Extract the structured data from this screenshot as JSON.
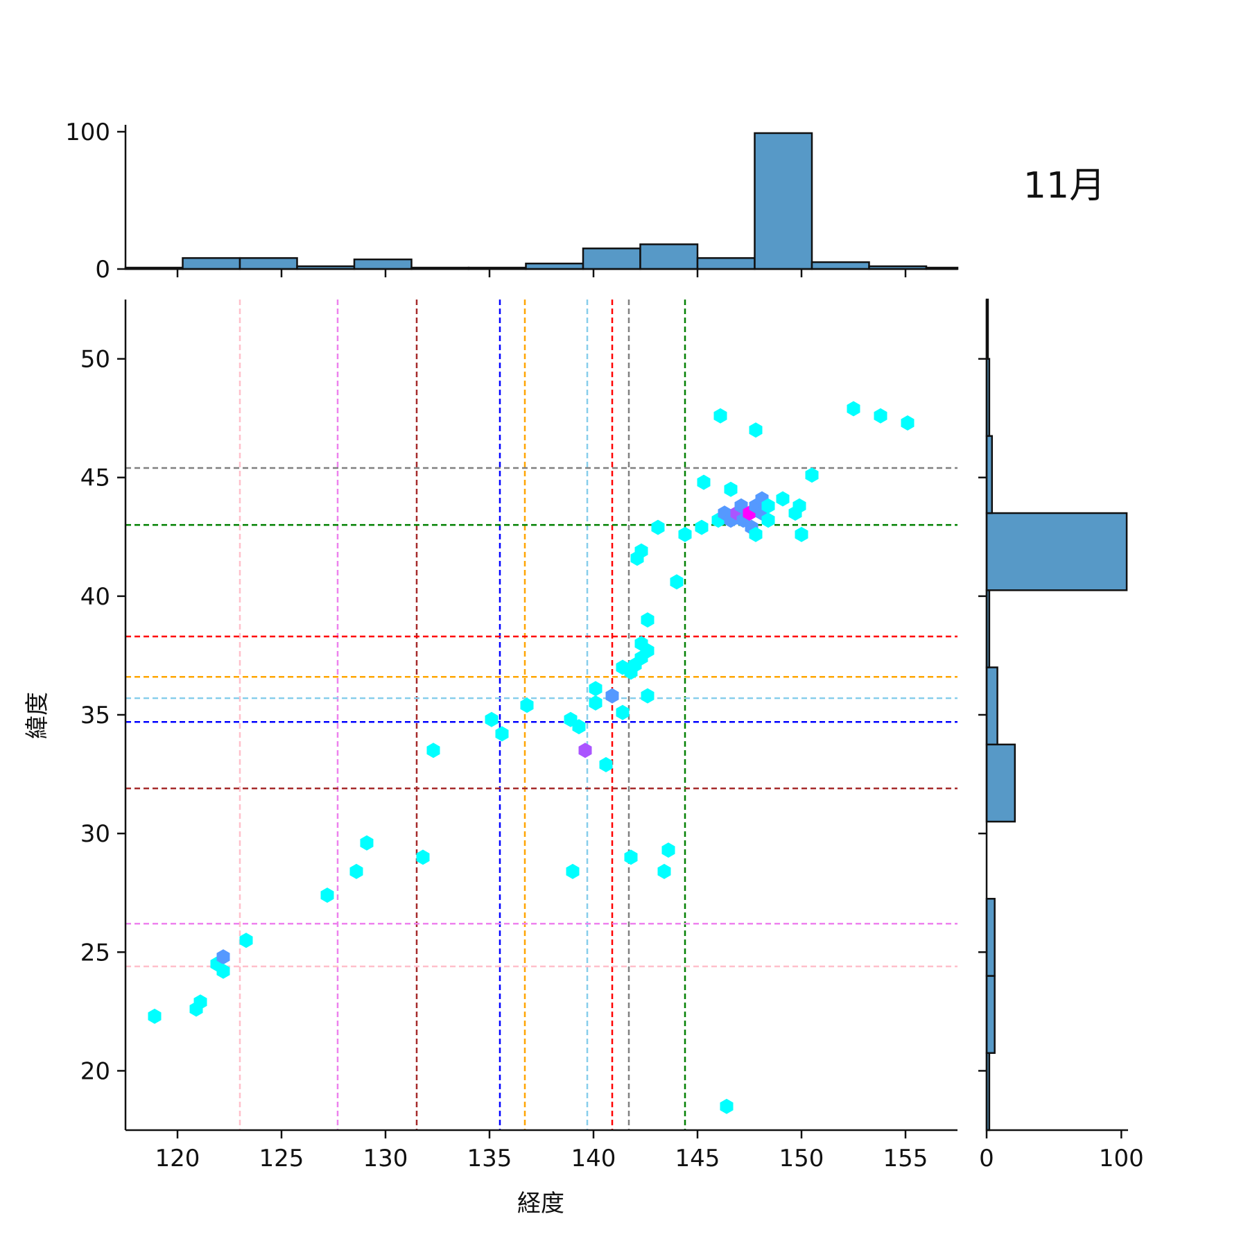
{
  "chart_data": {
    "type": "hexbin-jointplot",
    "title": "11月",
    "xlabel": "経度",
    "ylabel": "緯度",
    "xlim": [
      117.5,
      157.5
    ],
    "ylim": [
      17.5,
      52.5
    ],
    "xticks": [
      120,
      125,
      130,
      135,
      140,
      145,
      150,
      155
    ],
    "yticks": [
      20,
      25,
      30,
      35,
      40,
      45,
      50
    ],
    "top_hist": {
      "ylim": [
        0,
        100
      ],
      "yticks": [
        0,
        100
      ],
      "bin_edges": [
        117.5,
        120.25,
        123.0,
        125.75,
        128.5,
        131.25,
        134.0,
        136.75,
        139.5,
        142.25,
        145.0,
        147.75,
        150.5,
        153.25,
        156.0,
        157.5
      ],
      "counts": [
        1,
        8,
        8,
        2,
        7,
        1,
        1,
        4,
        15,
        18,
        8,
        99,
        5,
        2,
        1
      ]
    },
    "right_hist": {
      "xlim": [
        0,
        105
      ],
      "xticks": [
        0,
        100
      ],
      "bin_edges": [
        17.5,
        20.75,
        24.0,
        27.25,
        30.5,
        33.75,
        37.0,
        40.25,
        43.5,
        46.75,
        50.0,
        52.5
      ],
      "counts": [
        2,
        6,
        6,
        0,
        21,
        8,
        2,
        104,
        4,
        2,
        1
      ]
    },
    "vertical_lines": [
      {
        "x": 123.0,
        "color": "#ffc0cb"
      },
      {
        "x": 127.7,
        "color": "#ee82ee"
      },
      {
        "x": 131.5,
        "color": "#a52a2a"
      },
      {
        "x": 135.5,
        "color": "#0000ff"
      },
      {
        "x": 136.7,
        "color": "#ffa500"
      },
      {
        "x": 139.7,
        "color": "#87ceeb"
      },
      {
        "x": 140.9,
        "color": "#ff0000"
      },
      {
        "x": 141.7,
        "color": "#808080"
      },
      {
        "x": 144.4,
        "color": "#008000"
      }
    ],
    "horizontal_lines": [
      {
        "y": 45.4,
        "color": "#808080"
      },
      {
        "y": 43.0,
        "color": "#008000"
      },
      {
        "y": 38.3,
        "color": "#ff0000"
      },
      {
        "y": 36.6,
        "color": "#ffa500"
      },
      {
        "y": 35.7,
        "color": "#87ceeb"
      },
      {
        "y": 34.7,
        "color": "#0000ff"
      },
      {
        "y": 31.9,
        "color": "#a52a2a"
      },
      {
        "y": 26.2,
        "color": "#ee82ee"
      },
      {
        "y": 24.4,
        "color": "#ffc0cb"
      }
    ],
    "hex_colors": {
      "low": "#00ffff",
      "mid": "#5599ff",
      "high": "#aa55ff",
      "max": "#ff00ff"
    },
    "points": [
      {
        "x": 118.9,
        "y": 22.3,
        "level": "low"
      },
      {
        "x": 120.9,
        "y": 22.6,
        "level": "low"
      },
      {
        "x": 121.1,
        "y": 22.9,
        "level": "low"
      },
      {
        "x": 121.9,
        "y": 24.5,
        "level": "low"
      },
      {
        "x": 122.2,
        "y": 24.8,
        "level": "mid"
      },
      {
        "x": 122.2,
        "y": 24.2,
        "level": "low"
      },
      {
        "x": 123.3,
        "y": 25.5,
        "level": "low"
      },
      {
        "x": 127.2,
        "y": 27.4,
        "level": "low"
      },
      {
        "x": 128.6,
        "y": 28.4,
        "level": "low"
      },
      {
        "x": 129.1,
        "y": 29.6,
        "level": "low"
      },
      {
        "x": 131.8,
        "y": 29.0,
        "level": "low"
      },
      {
        "x": 132.3,
        "y": 33.5,
        "level": "low"
      },
      {
        "x": 135.1,
        "y": 34.8,
        "level": "low"
      },
      {
        "x": 135.6,
        "y": 34.2,
        "level": "low"
      },
      {
        "x": 136.8,
        "y": 35.4,
        "level": "low"
      },
      {
        "x": 138.9,
        "y": 34.8,
        "level": "low"
      },
      {
        "x": 139.3,
        "y": 34.5,
        "level": "low"
      },
      {
        "x": 139.6,
        "y": 33.5,
        "level": "high"
      },
      {
        "x": 139.0,
        "y": 28.4,
        "level": "low"
      },
      {
        "x": 140.1,
        "y": 36.1,
        "level": "low"
      },
      {
        "x": 140.1,
        "y": 35.5,
        "level": "low"
      },
      {
        "x": 140.6,
        "y": 32.9,
        "level": "low"
      },
      {
        "x": 140.9,
        "y": 35.8,
        "level": "mid"
      },
      {
        "x": 141.4,
        "y": 35.1,
        "level": "low"
      },
      {
        "x": 141.4,
        "y": 37.0,
        "level": "low"
      },
      {
        "x": 141.8,
        "y": 36.8,
        "level": "low"
      },
      {
        "x": 141.8,
        "y": 29.0,
        "level": "low"
      },
      {
        "x": 142.0,
        "y": 37.1,
        "level": "low"
      },
      {
        "x": 142.3,
        "y": 37.4,
        "level": "low"
      },
      {
        "x": 142.3,
        "y": 38.0,
        "level": "low"
      },
      {
        "x": 142.6,
        "y": 37.7,
        "level": "low"
      },
      {
        "x": 142.6,
        "y": 39.0,
        "level": "low"
      },
      {
        "x": 142.6,
        "y": 35.8,
        "level": "low"
      },
      {
        "x": 142.1,
        "y": 41.6,
        "level": "low"
      },
      {
        "x": 142.3,
        "y": 41.9,
        "level": "low"
      },
      {
        "x": 143.1,
        "y": 42.9,
        "level": "low"
      },
      {
        "x": 143.6,
        "y": 29.3,
        "level": "low"
      },
      {
        "x": 143.4,
        "y": 28.4,
        "level": "low"
      },
      {
        "x": 144.0,
        "y": 40.6,
        "level": "low"
      },
      {
        "x": 144.4,
        "y": 42.6,
        "level": "low"
      },
      {
        "x": 145.2,
        "y": 42.9,
        "level": "low"
      },
      {
        "x": 145.3,
        "y": 44.8,
        "level": "low"
      },
      {
        "x": 146.1,
        "y": 47.6,
        "level": "low"
      },
      {
        "x": 146.0,
        "y": 43.2,
        "level": "low"
      },
      {
        "x": 146.3,
        "y": 43.5,
        "level": "mid"
      },
      {
        "x": 146.6,
        "y": 44.5,
        "level": "low"
      },
      {
        "x": 146.6,
        "y": 43.2,
        "level": "mid"
      },
      {
        "x": 146.9,
        "y": 43.5,
        "level": "high"
      },
      {
        "x": 147.1,
        "y": 43.8,
        "level": "mid"
      },
      {
        "x": 147.2,
        "y": 43.2,
        "level": "mid"
      },
      {
        "x": 147.5,
        "y": 43.5,
        "level": "max"
      },
      {
        "x": 147.6,
        "y": 42.9,
        "level": "mid"
      },
      {
        "x": 147.8,
        "y": 43.8,
        "level": "mid"
      },
      {
        "x": 147.8,
        "y": 42.6,
        "level": "low"
      },
      {
        "x": 147.8,
        "y": 47.0,
        "level": "low"
      },
      {
        "x": 148.1,
        "y": 44.1,
        "level": "mid"
      },
      {
        "x": 148.1,
        "y": 43.5,
        "level": "mid"
      },
      {
        "x": 148.4,
        "y": 43.8,
        "level": "low"
      },
      {
        "x": 148.4,
        "y": 43.2,
        "level": "low"
      },
      {
        "x": 146.4,
        "y": 18.5,
        "level": "low"
      },
      {
        "x": 149.1,
        "y": 44.1,
        "level": "low"
      },
      {
        "x": 149.7,
        "y": 43.5,
        "level": "low"
      },
      {
        "x": 149.9,
        "y": 43.8,
        "level": "low"
      },
      {
        "x": 150.0,
        "y": 42.6,
        "level": "low"
      },
      {
        "x": 150.5,
        "y": 45.1,
        "level": "low"
      },
      {
        "x": 152.5,
        "y": 47.9,
        "level": "low"
      },
      {
        "x": 153.8,
        "y": 47.6,
        "level": "low"
      },
      {
        "x": 155.1,
        "y": 47.3,
        "level": "low"
      }
    ]
  }
}
